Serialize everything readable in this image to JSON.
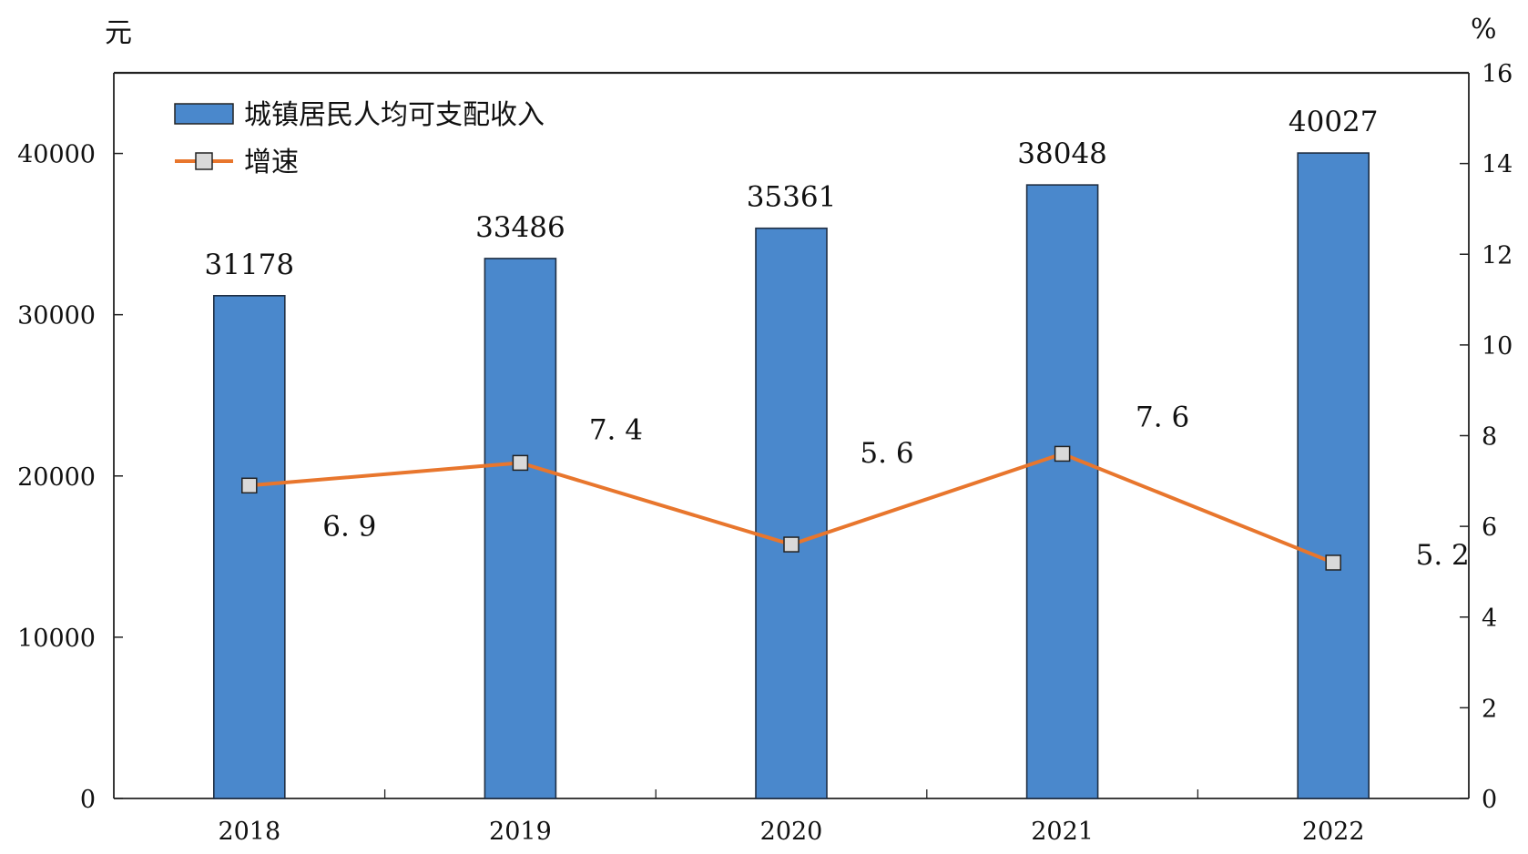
{
  "chart_data": {
    "type": "bar",
    "categories": [
      "2018",
      "2019",
      "2020",
      "2021",
      "2022"
    ],
    "series": [
      {
        "name": "城镇居民人均可支配收入",
        "type": "bar",
        "axis": "left",
        "values": [
          31178,
          33486,
          35361,
          38048,
          40027
        ],
        "labels": [
          "31178",
          "33486",
          "35361",
          "38048",
          "40027"
        ],
        "color": "#4a88cc"
      },
      {
        "name": "增速",
        "type": "line",
        "axis": "right",
        "values": [
          6.9,
          7.4,
          5.6,
          7.6,
          5.2
        ],
        "labels": [
          "6. 9",
          "7. 4",
          "5. 6",
          "7. 6",
          "5. 2"
        ],
        "color": "#e8762d"
      }
    ],
    "y_left": {
      "unit": "元",
      "ylim": [
        0,
        45000
      ],
      "ticks": [
        0,
        10000,
        20000,
        30000,
        40000
      ]
    },
    "y_right": {
      "unit": "%",
      "ylim": [
        0,
        16
      ],
      "ticks": [
        0,
        2,
        4,
        6,
        8,
        10,
        12,
        14,
        16
      ]
    },
    "legend_position": "top-left",
    "grid": false
  }
}
